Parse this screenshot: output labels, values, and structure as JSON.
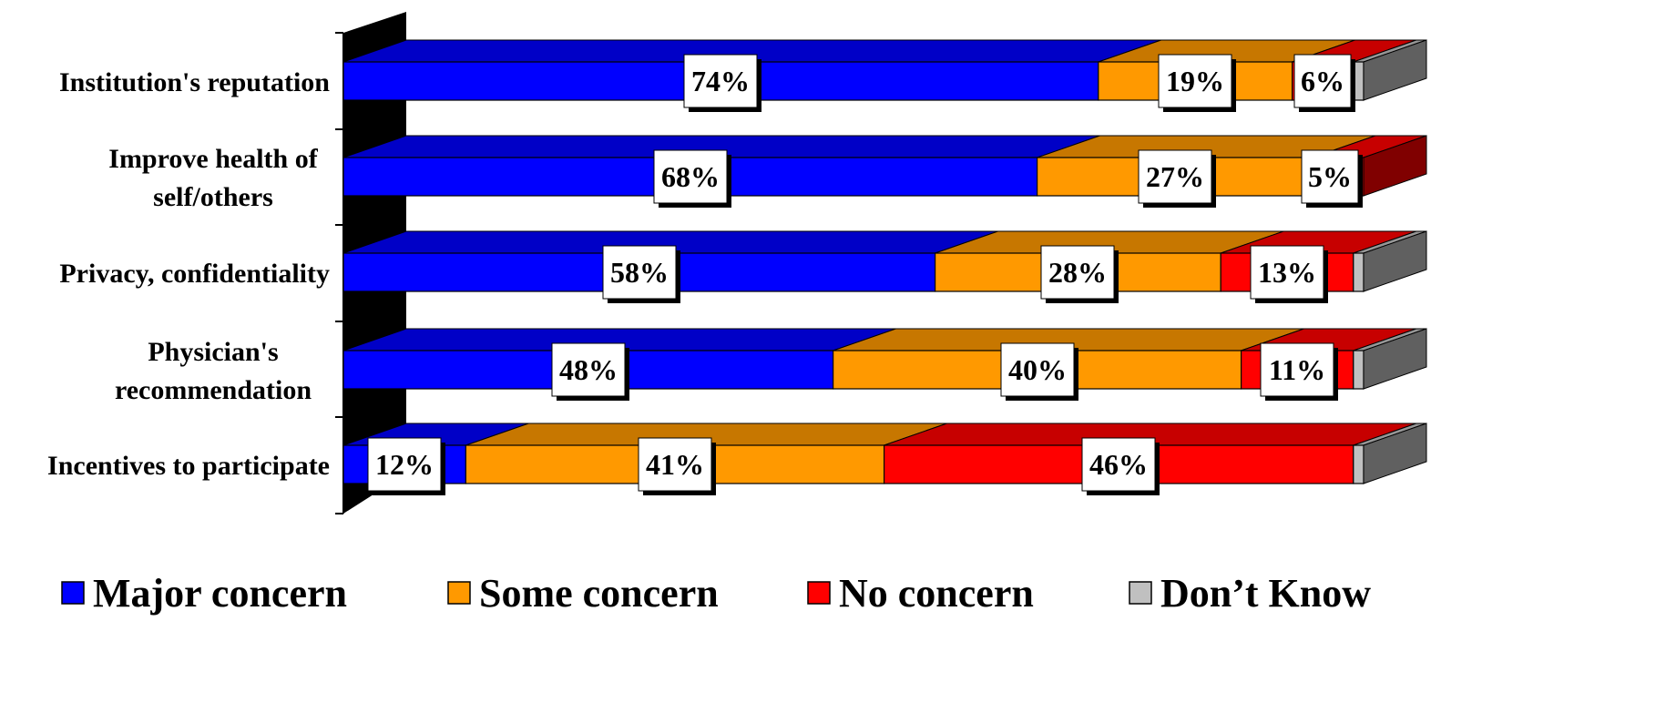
{
  "chart_data": {
    "type": "bar",
    "orientation": "horizontal",
    "stacked": true,
    "three_d": true,
    "title": "",
    "xlabel": "",
    "ylabel": "",
    "xlim": [
      0,
      100
    ],
    "grid": false,
    "legend_position": "bottom",
    "categories": [
      "Institution's reputation",
      "Improve health of self/others",
      "Privacy, confidentiality",
      "Physician's recommendation",
      "Incentives to participate"
    ],
    "category_lines": [
      [
        "Institution's reputation"
      ],
      [
        "Improve health of",
        "self/others"
      ],
      [
        "Privacy, confidentiality"
      ],
      [
        "Physician's",
        "recommendation"
      ],
      [
        "Incentives to participate"
      ]
    ],
    "series": [
      {
        "name": "Major concern",
        "color": "#0000FF",
        "values": [
          74,
          68,
          58,
          48,
          12
        ],
        "labels": [
          "74%",
          "68%",
          "58%",
          "48%",
          "12%"
        ]
      },
      {
        "name": "Some concern",
        "color": "#FF9900",
        "values": [
          19,
          27,
          28,
          40,
          41
        ],
        "labels": [
          "19%",
          "27%",
          "28%",
          "40%",
          "41%"
        ]
      },
      {
        "name": "No concern",
        "color": "#FF0000",
        "values": [
          6,
          5,
          13,
          11,
          46
        ],
        "labels": [
          "6%",
          "5%",
          "13%",
          "11%",
          "46%"
        ]
      },
      {
        "name": "Don’t Know",
        "color": "#C0C0C0",
        "values": [
          1,
          0,
          1,
          1,
          1
        ],
        "labels": [
          "",
          "",
          "",
          "",
          ""
        ]
      }
    ]
  }
}
